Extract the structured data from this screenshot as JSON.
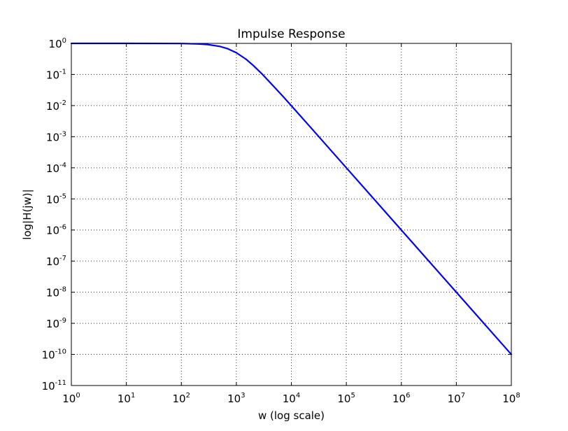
{
  "chart_data": {
    "type": "line",
    "title": "Impulse Response",
    "xlabel": "w (log scale)",
    "ylabel": "log|H(jw)|",
    "x_scale": "log",
    "y_scale": "log",
    "xlim": [
      1,
      100000000
    ],
    "ylim": [
      1e-11,
      1
    ],
    "grid": true,
    "x_ticks": [
      {
        "base": "10",
        "exp": "0"
      },
      {
        "base": "10",
        "exp": "1"
      },
      {
        "base": "10",
        "exp": "2"
      },
      {
        "base": "10",
        "exp": "3"
      },
      {
        "base": "10",
        "exp": "4"
      },
      {
        "base": "10",
        "exp": "5"
      },
      {
        "base": "10",
        "exp": "6"
      },
      {
        "base": "10",
        "exp": "7"
      },
      {
        "base": "10",
        "exp": "8"
      }
    ],
    "y_ticks": [
      {
        "base": "10",
        "exp": "0"
      },
      {
        "base": "10",
        "exp": "-1"
      },
      {
        "base": "10",
        "exp": "-2"
      },
      {
        "base": "10",
        "exp": "-3"
      },
      {
        "base": "10",
        "exp": "-4"
      },
      {
        "base": "10",
        "exp": "-5"
      },
      {
        "base": "10",
        "exp": "-6"
      },
      {
        "base": "10",
        "exp": "-7"
      },
      {
        "base": "10",
        "exp": "-8"
      },
      {
        "base": "10",
        "exp": "-9"
      },
      {
        "base": "10",
        "exp": "-10"
      },
      {
        "base": "10",
        "exp": "-11"
      }
    ],
    "series": [
      {
        "color": "#0000ff",
        "x": [
          1,
          10,
          100,
          200,
          300,
          500,
          700,
          1000,
          1500,
          2000,
          3000,
          5000,
          7000,
          10000,
          20000,
          50000,
          100000,
          1000000,
          10000000,
          100000000
        ],
        "y": [
          1,
          1,
          0.99,
          0.96,
          0.92,
          0.8,
          0.67,
          0.5,
          0.31,
          0.2,
          0.1,
          0.038,
          0.02,
          0.0099,
          0.0025,
          0.0004,
          0.0001,
          1e-06,
          1e-08,
          1e-10
        ]
      }
    ]
  }
}
